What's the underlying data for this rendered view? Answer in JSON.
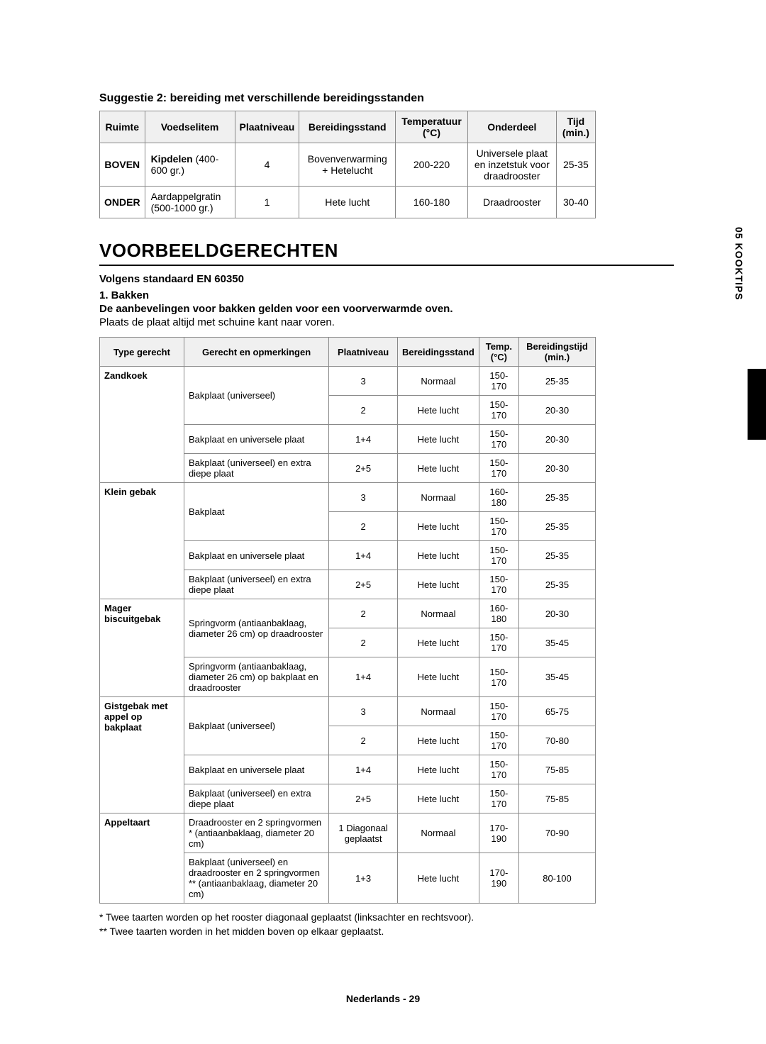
{
  "sideTab": "05  KOOKTIPS",
  "suggestTitle": "Suggestie 2: bereiding met verschillende bereidingsstanden",
  "table1": {
    "headers": [
      "Ruimte",
      "Voedselitem",
      "Plaatniveau",
      "Bereidingsstand",
      "Temperatuur (°C)",
      "Onderdeel",
      "Tijd (min.)"
    ],
    "rows": [
      {
        "ruimte": "BOVEN",
        "food_html": "<b>Kipdelen</b> (400-600 gr.)",
        "plaat": "4",
        "stand": "Bovenverwarming + Hetelucht",
        "temp": "200-220",
        "onderdeel": "Universele plaat en inzetstuk voor draadrooster",
        "tijd": "25-35"
      },
      {
        "ruimte": "ONDER",
        "food_html": "Aardappelgratin (500-1000 gr.)",
        "plaat": "1",
        "stand": "Hete lucht",
        "temp": "160-180",
        "onderdeel": "Draadrooster",
        "tijd": "30-40"
      }
    ]
  },
  "sectionTitle": "VOORBEELDGERECHTEN",
  "standard": "Volgens standaard EN 60350",
  "step": "1. Bakken",
  "recommend": "De aanbevelingen voor bakken gelden voor een voorverwarmde oven.",
  "plain": "Plaats de plaat altijd met schuine kant naar voren.",
  "table2": {
    "headers": [
      "Type gerecht",
      "Gerecht en opmerkingen",
      "Plaatniveau",
      "Bereidingsstand",
      "Temp. (°C)",
      "Bereidingstijd (min.)"
    ],
    "groups": [
      {
        "type": "Zandkoek",
        "rows": [
          {
            "dish": "Bakplaat (universeel)",
            "plaat": "3",
            "stand": "Normaal",
            "temp": "150-170",
            "tijd": "25-35",
            "dishRowspan": 2
          },
          {
            "plaat": "2",
            "stand": "Hete lucht",
            "temp": "150-170",
            "tijd": "20-30"
          },
          {
            "dish": "Bakplaat en universele plaat",
            "plaat": "1+4",
            "stand": "Hete lucht",
            "temp": "150-170",
            "tijd": "20-30"
          },
          {
            "dish": "Bakplaat (universeel) en extra diepe plaat",
            "plaat": "2+5",
            "stand": "Hete lucht",
            "temp": "150-170",
            "tijd": "20-30"
          }
        ]
      },
      {
        "type": "Klein gebak",
        "rows": [
          {
            "dish": "Bakplaat",
            "plaat": "3",
            "stand": "Normaal",
            "temp": "160-180",
            "tijd": "25-35",
            "dishRowspan": 2
          },
          {
            "plaat": "2",
            "stand": "Hete lucht",
            "temp": "150-170",
            "tijd": "25-35"
          },
          {
            "dish": "Bakplaat en universele plaat",
            "plaat": "1+4",
            "stand": "Hete lucht",
            "temp": "150-170",
            "tijd": "25-35"
          },
          {
            "dish": "Bakplaat (universeel) en extra diepe plaat",
            "plaat": "2+5",
            "stand": "Hete lucht",
            "temp": "150-170",
            "tijd": "25-35"
          }
        ]
      },
      {
        "type": "Mager biscuitgebak",
        "rows": [
          {
            "dish": "Springvorm\n(antiaanbaklaag, diameter 26 cm) op draadrooster",
            "plaat": "2",
            "stand": "Normaal",
            "temp": "160-180",
            "tijd": "20-30",
            "dishRowspan": 2
          },
          {
            "plaat": "2",
            "stand": "Hete lucht",
            "temp": "150-170",
            "tijd": "35-45"
          },
          {
            "dish": "Springvorm\n(antiaanbaklaag, diameter 26 cm) op bakplaat en draadrooster",
            "plaat": "1+4",
            "stand": "Hete lucht",
            "temp": "150-170",
            "tijd": "35-45"
          }
        ]
      },
      {
        "type": "Gistgebak met appel op bakplaat",
        "rows": [
          {
            "dish": "Bakplaat (universeel)",
            "plaat": "3",
            "stand": "Normaal",
            "temp": "150-170",
            "tijd": "65-75",
            "dishRowspan": 2
          },
          {
            "plaat": "2",
            "stand": "Hete lucht",
            "temp": "150-170",
            "tijd": "70-80"
          },
          {
            "dish": "Bakplaat en universele plaat",
            "plaat": "1+4",
            "stand": "Hete lucht",
            "temp": "150-170",
            "tijd": "75-85"
          },
          {
            "dish": "Bakplaat (universeel) en extra diepe plaat",
            "plaat": "2+5",
            "stand": "Hete lucht",
            "temp": "150-170",
            "tijd": "75-85"
          }
        ]
      },
      {
        "type": "Appeltaart",
        "rows": [
          {
            "dish": "Draadrooster en 2 springvormen *\n(antiaanbaklaag, diameter 20 cm)",
            "plaat": "1 Diagonaal geplaatst",
            "stand": "Normaal",
            "temp": "170-190",
            "tijd": "70-90"
          },
          {
            "dish": "Bakplaat (universeel) en draadrooster en 2 springvormen **\n(antiaanbaklaag, diameter 20 cm)",
            "plaat": "1+3",
            "stand": "Hete lucht",
            "temp": "170-190",
            "tijd": "80-100"
          }
        ]
      }
    ]
  },
  "footnote1": "* Twee taarten worden op het rooster diagonaal geplaatst (linksachter en rechtsvoor).",
  "footnote2": "** Twee taarten worden in het midden boven op elkaar geplaatst.",
  "footer": "Nederlands - 29"
}
